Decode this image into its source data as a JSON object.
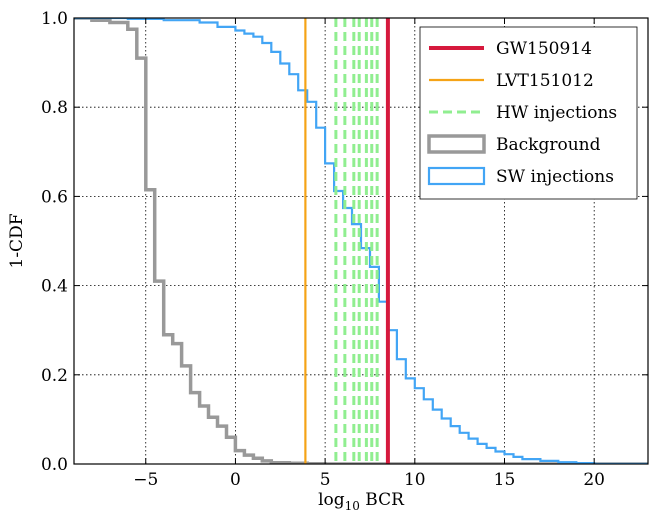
{
  "chart_data": {
    "type": "line",
    "xlabel_main": "log",
    "xlabel_sub": "10",
    "xlabel_rest": " BCR",
    "ylabel": "1-CDF",
    "xlim": [
      -9,
      23
    ],
    "ylim": [
      0,
      1.0
    ],
    "x_ticks": [
      -5,
      0,
      5,
      10,
      15,
      20
    ],
    "x_tick_labels": [
      "−5",
      "0",
      "5",
      "10",
      "15",
      "20"
    ],
    "y_ticks": [
      0,
      0.2,
      0.4,
      0.6,
      0.8,
      1.0
    ],
    "y_tick_labels": [
      "0.0",
      "0.2",
      "0.4",
      "0.6",
      "0.8",
      "1.0"
    ],
    "grid": true,
    "legend_position": "top-right",
    "vertical_lines": [
      {
        "name": "GW150914",
        "x": 8.5,
        "color": "#d6193d",
        "style": "solid"
      },
      {
        "name": "LVT151012",
        "x": 3.9,
        "color": "#f5a316",
        "style": "solid"
      },
      {
        "name": "HW injections",
        "x": [
          5.6,
          6.1,
          6.6,
          6.9,
          7.3,
          7.6,
          7.9
        ],
        "color": "#90ee90",
        "style": "dashed"
      }
    ],
    "series": [
      {
        "name": "Background",
        "color": "#999999",
        "edges": [
          -9,
          -8,
          -7,
          -6,
          -5.5,
          -5,
          -4.5,
          -4,
          -3.5,
          -3,
          -2.5,
          -2,
          -1.5,
          -1,
          -0.5,
          0,
          0.5,
          1,
          1.5,
          2,
          3,
          4,
          5,
          23
        ],
        "values": [
          1.0,
          0.995,
          0.99,
          0.975,
          0.91,
          0.615,
          0.41,
          0.29,
          0.27,
          0.22,
          0.16,
          0.13,
          0.105,
          0.085,
          0.06,
          0.03,
          0.02,
          0.013,
          0.007,
          0.003,
          0.0015,
          0.0005,
          0.0
        ]
      },
      {
        "name": "SW injections",
        "color": "#42a5f5",
        "edges": [
          -9,
          -6,
          -4,
          -2,
          -1,
          0,
          0.5,
          1,
          1.5,
          2,
          2.5,
          3,
          3.5,
          4,
          4.5,
          5,
          5.5,
          6,
          6.5,
          7,
          7.5,
          8,
          8.5,
          9,
          9.5,
          10,
          10.5,
          11,
          11.5,
          12,
          12.5,
          13,
          13.5,
          14,
          14.5,
          15,
          15.5,
          16,
          17,
          18,
          19,
          20,
          23
        ],
        "values": [
          1.0,
          0.998,
          0.995,
          0.99,
          0.98,
          0.972,
          0.965,
          0.958,
          0.944,
          0.924,
          0.898,
          0.874,
          0.838,
          0.812,
          0.754,
          0.674,
          0.612,
          0.574,
          0.538,
          0.484,
          0.442,
          0.364,
          0.3,
          0.235,
          0.192,
          0.17,
          0.145,
          0.122,
          0.102,
          0.085,
          0.07,
          0.057,
          0.045,
          0.036,
          0.028,
          0.022,
          0.016,
          0.011,
          0.007,
          0.004,
          0.002,
          0.0
        ]
      }
    ],
    "legend_entries": [
      {
        "label": "GW150914",
        "color": "#d6193d",
        "style": "solid-thick"
      },
      {
        "label": "LVT151012",
        "color": "#f5a316",
        "style": "solid"
      },
      {
        "label": "HW injections",
        "color": "#90ee90",
        "style": "dashed"
      },
      {
        "label": "Background",
        "color": "#999999",
        "style": "box"
      },
      {
        "label": "SW injections",
        "color": "#42a5f5",
        "style": "box"
      }
    ]
  }
}
